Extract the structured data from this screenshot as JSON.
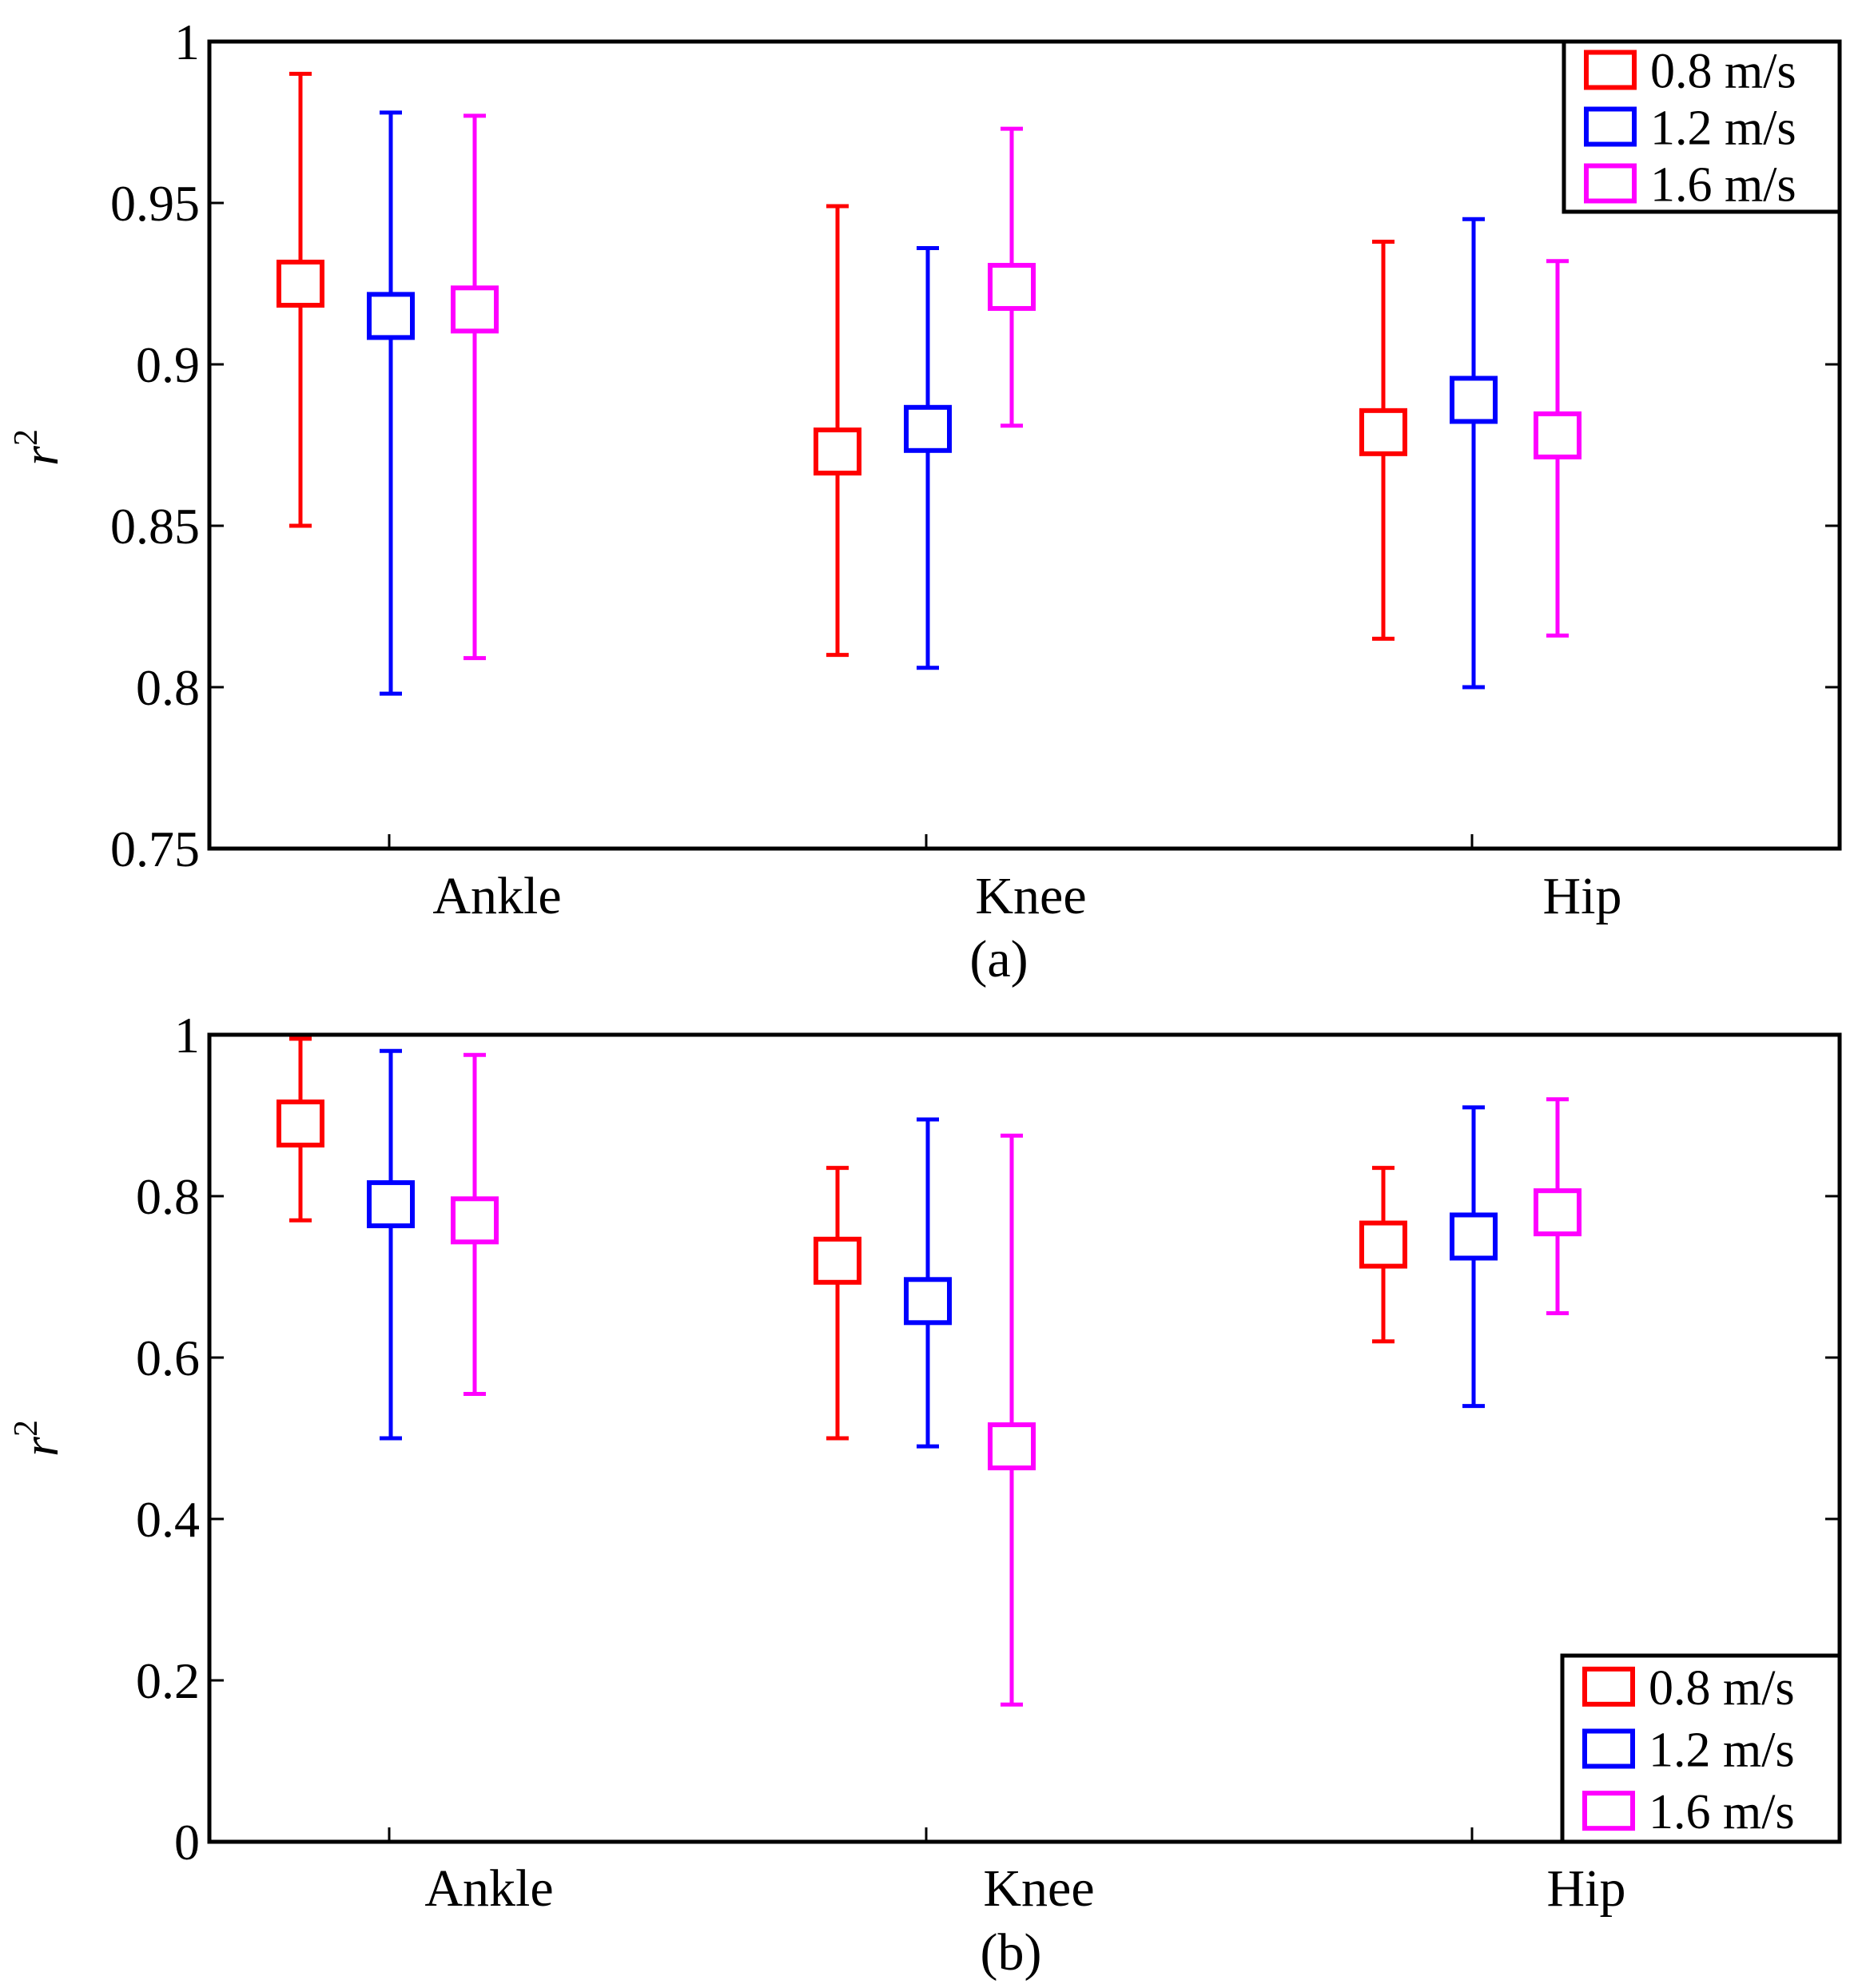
{
  "chart_data": [
    {
      "type": "errorbar",
      "panel_label": "(a)",
      "ylabel": "r",
      "ylabel_superscript": "2",
      "ylim": [
        0.75,
        1
      ],
      "yticks": [
        0.75,
        0.8,
        0.85,
        0.9,
        0.95,
        1
      ],
      "ytick_labels": [
        "0.75",
        "0.8",
        "0.85",
        "0.9",
        "0.95",
        "1"
      ],
      "categories": [
        "Ankle",
        "Knee",
        "Hip"
      ],
      "grid": false,
      "legend_position": "top-right",
      "series": [
        {
          "name": "0.8 m/s",
          "color": "#ff0000",
          "values": [
            0.925,
            0.873,
            0.879
          ],
          "lower": [
            0.85,
            0.81,
            0.815
          ],
          "upper": [
            0.99,
            0.949,
            0.938
          ]
        },
        {
          "name": "1.2 m/s",
          "color": "#0000ff",
          "values": [
            0.915,
            0.88,
            0.889
          ],
          "lower": [
            0.798,
            0.806,
            0.8
          ],
          "upper": [
            0.978,
            0.936,
            0.945
          ]
        },
        {
          "name": "1.6 m/s",
          "color": "#ff00ff",
          "values": [
            0.917,
            0.924,
            0.878
          ],
          "lower": [
            0.809,
            0.881,
            0.816
          ],
          "upper": [
            0.977,
            0.973,
            0.932
          ]
        }
      ]
    },
    {
      "type": "errorbar",
      "panel_label": "(b)",
      "ylabel": "r",
      "ylabel_superscript": "2",
      "ylim": [
        0,
        1
      ],
      "yticks": [
        0,
        0.2,
        0.4,
        0.6,
        0.8,
        1
      ],
      "ytick_labels": [
        "0",
        "0.2",
        "0.4",
        "0.6",
        "0.8",
        "1"
      ],
      "categories": [
        "Ankle",
        "Knee",
        "Hip"
      ],
      "grid": false,
      "legend_position": "bottom-right",
      "series": [
        {
          "name": "0.8 m/s",
          "color": "#ff0000",
          "values": [
            0.89,
            0.72,
            0.74
          ],
          "lower": [
            0.77,
            0.5,
            0.62
          ],
          "upper": [
            0.995,
            0.835,
            0.835
          ]
        },
        {
          "name": "1.2 m/s",
          "color": "#0000ff",
          "values": [
            0.79,
            0.67,
            0.75
          ],
          "lower": [
            0.5,
            0.49,
            0.54
          ],
          "upper": [
            0.98,
            0.895,
            0.91
          ]
        },
        {
          "name": "1.6 m/s",
          "color": "#ff00ff",
          "values": [
            0.77,
            0.49,
            0.78
          ],
          "lower": [
            0.555,
            0.17,
            0.655
          ],
          "upper": [
            0.975,
            0.875,
            0.92
          ]
        }
      ]
    }
  ]
}
